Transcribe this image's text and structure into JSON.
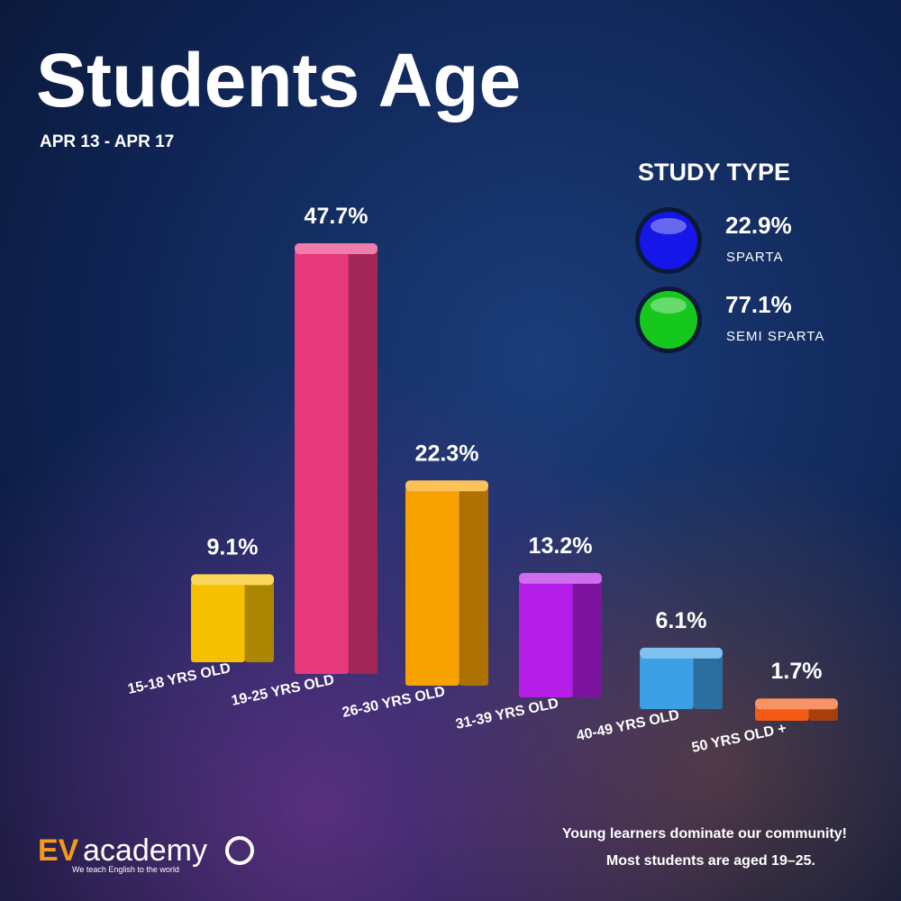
{
  "chart_data": {
    "type": "bar",
    "title": "Students Age",
    "subtitle": "APR 13 - APR 17",
    "categories": [
      "15-18 YRS OLD",
      "19-25 YRS OLD",
      "26-30 YRS OLD",
      "31-39 YRS OLD",
      "40-49 YRS OLD",
      "50 YRS OLD +"
    ],
    "values": [
      9.1,
      47.7,
      22.3,
      13.2,
      6.1,
      1.7
    ],
    "value_labels": [
      "9.1%",
      "47.7%",
      "22.3%",
      "13.2%",
      "6.1%",
      "1.7%"
    ],
    "colors": [
      "#f5c000",
      "#e8387c",
      "#f7a200",
      "#b41ee6",
      "#3d9fe6",
      "#f35a12"
    ],
    "study_type": {
      "title": "STUDY TYPE",
      "items": [
        {
          "name": "SPARTA",
          "color": "#1616e8",
          "value": 22.9,
          "value_label": "22.9%"
        },
        {
          "name": "SEMI SPARTA",
          "color": "#16c81e",
          "value": 77.1,
          "value_label": "77.1%"
        }
      ]
    },
    "note": [
      "Young learners dominate our community!",
      "Most students are aged 19–25."
    ]
  },
  "brand": {
    "prefix": "EV",
    "name": "academy",
    "tagline": "We teach English to the world"
  }
}
